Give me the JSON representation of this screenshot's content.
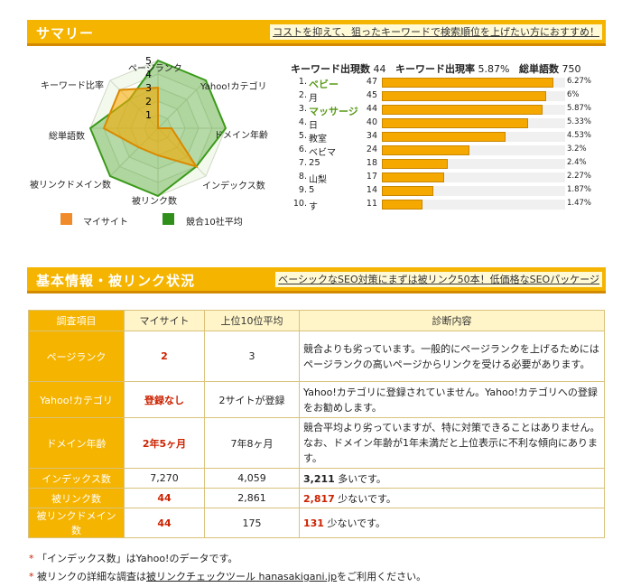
{
  "summary": {
    "title": "サマリー",
    "link_text": "コストを抑えて、狙ったキーワードで検索順位を上げたい方におすすめ！",
    "radar": {
      "axes": [
        "ページランク",
        "Yahoo!カテゴリ",
        "ドメイン年齢",
        "インデックス数",
        "被リンク数",
        "被リンクドメイン数",
        "総単語数",
        "キーワード比率"
      ],
      "scale_labels": [
        "5",
        "4",
        "3",
        "2",
        "1"
      ],
      "my_site": [
        3,
        0,
        1,
        4,
        2,
        2,
        4,
        4
      ],
      "competitor_avg": [
        5,
        5,
        5,
        4,
        5,
        5,
        5,
        3
      ],
      "my_color": "#f5a800",
      "comp_color": "#3a9a1a"
    },
    "legend": {
      "my_site": "マイサイト",
      "competitor": "競合10社平均",
      "my_color": "#f08a2a",
      "comp_color": "#2f8f1a"
    },
    "stats": {
      "kw_count_label": "キーワード出現数",
      "kw_count": "44",
      "kw_rate_label": "キーワード出現率",
      "kw_rate": "5.87%",
      "total_words_label": "総単語数",
      "total_words": "750"
    },
    "keywords": [
      {
        "rank": "1.",
        "word": "ベビー",
        "count": "47",
        "pct": "6.27%",
        "value": 6.27,
        "hl": true
      },
      {
        "rank": "2.",
        "word": "月",
        "count": "45",
        "pct": "6%",
        "value": 6.0,
        "hl": false
      },
      {
        "rank": "3.",
        "word": "マッサージ",
        "count": "44",
        "pct": "5.87%",
        "value": 5.87,
        "hl": true
      },
      {
        "rank": "4.",
        "word": "日",
        "count": "40",
        "pct": "5.33%",
        "value": 5.33,
        "hl": false
      },
      {
        "rank": "5.",
        "word": "教室",
        "count": "34",
        "pct": "4.53%",
        "value": 4.53,
        "hl": false
      },
      {
        "rank": "6.",
        "word": "ベビマ",
        "count": "24",
        "pct": "3.2%",
        "value": 3.2,
        "hl": false
      },
      {
        "rank": "7.",
        "word": "25",
        "count": "18",
        "pct": "2.4%",
        "value": 2.4,
        "hl": false
      },
      {
        "rank": "8.",
        "word": "山梨",
        "count": "17",
        "pct": "2.27%",
        "value": 2.27,
        "hl": false
      },
      {
        "rank": "9.",
        "word": "5",
        "count": "14",
        "pct": "1.87%",
        "value": 1.87,
        "hl": false
      },
      {
        "rank": "10.",
        "word": "す",
        "count": "11",
        "pct": "1.47%",
        "value": 1.47,
        "hl": false
      }
    ],
    "bar_max": 6.27
  },
  "basic": {
    "title": "基本情報・被リンク状況",
    "link_text": "ベーシックなSEO対策にまずは被リンク50本！低価格なSEOパッケージ",
    "headers": [
      "調査項目",
      "マイサイト",
      "上位10位平均",
      "診断内容"
    ],
    "rows": [
      {
        "item": "ページランク",
        "mine": "2",
        "avg": "3",
        "diag_strong": "",
        "diag": "競合よりも劣っています。一般的にページランクを上げるためにはページランクの高いページからリンクを受ける必要があります。"
      },
      {
        "item": "Yahoo!カテゴリ",
        "mine": "登録なし",
        "avg": "2サイトが登録",
        "diag_strong": "",
        "diag": "Yahoo!カテゴリに登録されていません。Yahoo!カテゴリへの登録をお勧めします。"
      },
      {
        "item": "ドメイン年齢",
        "mine": "2年5ヶ月",
        "avg": "7年8ヶ月",
        "diag_strong": "",
        "diag": "競合平均より劣っていますが、特に対策できることはありません。なお、ドメイン年齢が1年未満だと上位表示に不利な傾向にあります。"
      },
      {
        "item": "インデックス数",
        "mine": "7,270",
        "avg": "4,059",
        "diag_strong": "3,211",
        "diag": " 多いです。"
      },
      {
        "item": "被リンク数",
        "mine": "44",
        "avg": "2,861",
        "diag_strong": "2,817",
        "diag": " 少ないです。"
      },
      {
        "item": "被リンクドメイン数",
        "mine": "44",
        "avg": "175",
        "diag_strong": "131",
        "diag": " 少ないです。"
      }
    ]
  },
  "notes": {
    "note1_ast": "*",
    "note1": "「インデックス数」はYahoo!のデータです。",
    "note2_ast": "*",
    "note2_pre": "被リンクの詳細な調査は",
    "note2_link": "被リンクチェックツール hanasakigani.jp",
    "note2_post": "をご利用ください。"
  }
}
